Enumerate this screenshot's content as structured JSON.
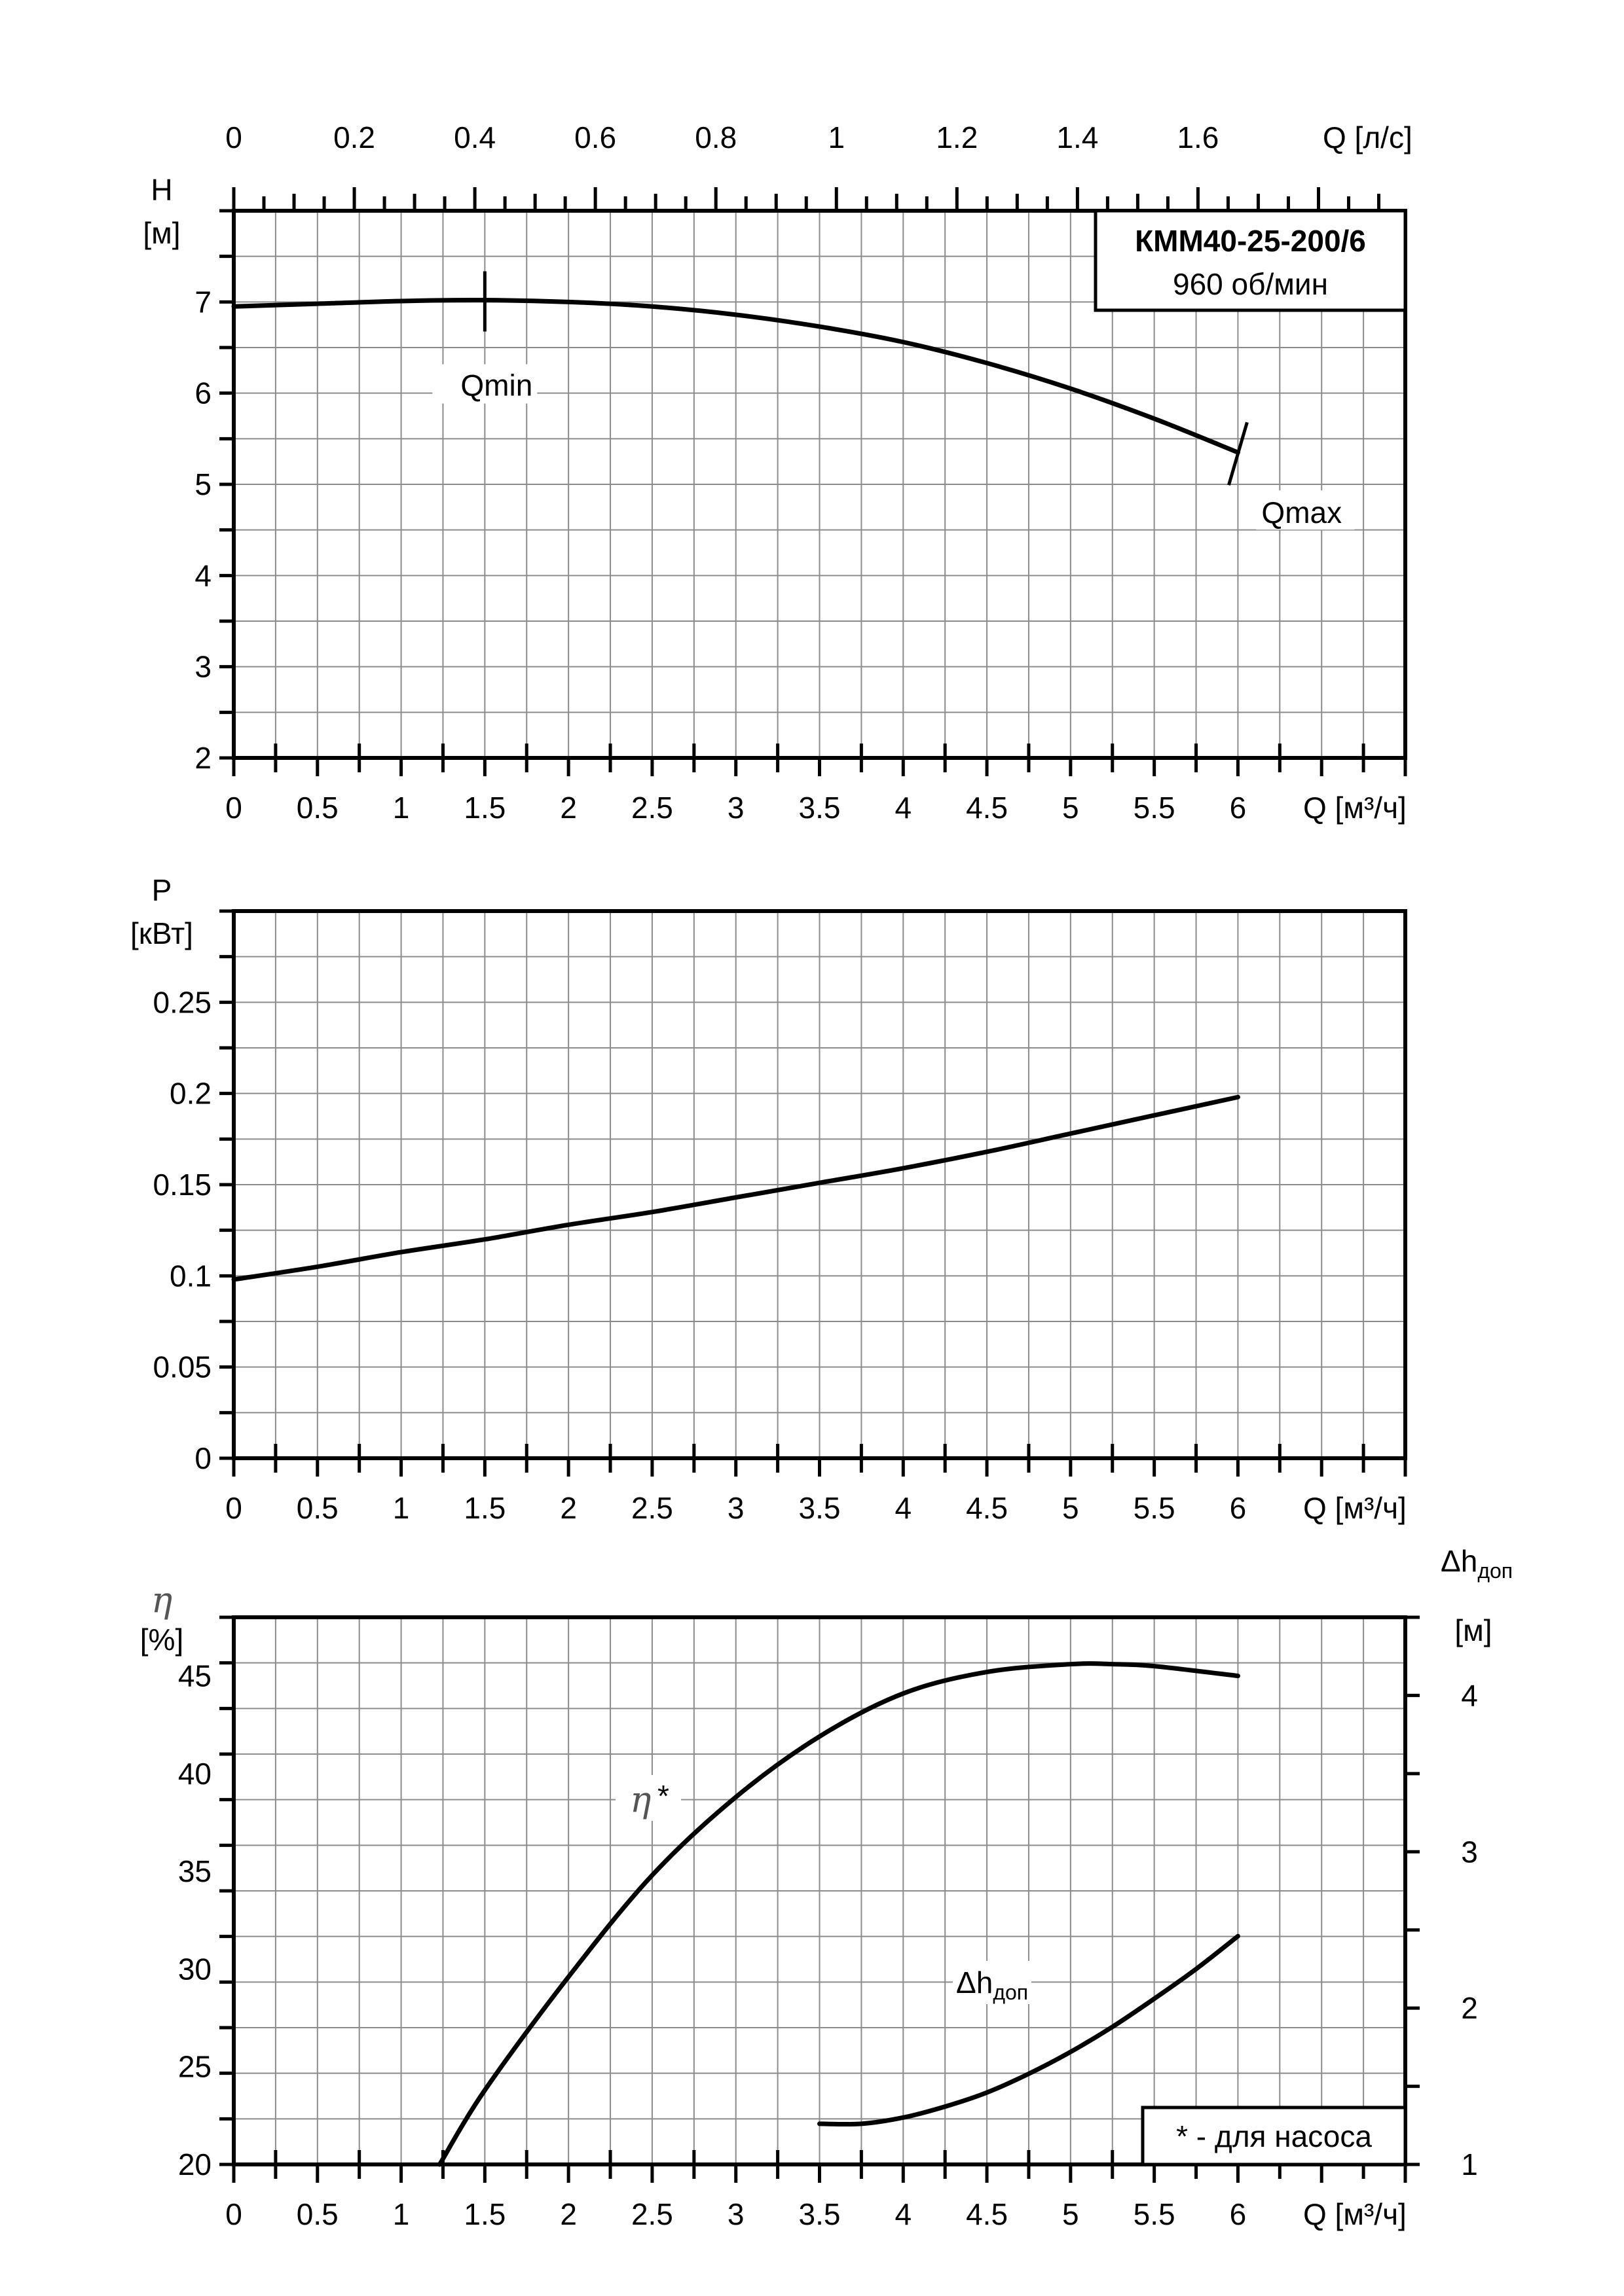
{
  "chart_data": [
    {
      "type": "line",
      "ylabel": "H",
      "yunit": "[м]",
      "ylim": [
        2,
        8
      ],
      "yticks": [
        2,
        3,
        4,
        5,
        6,
        7
      ],
      "xlim": [
        0,
        7
      ],
      "xticks": [
        0,
        0.5,
        1,
        1.5,
        2,
        2.5,
        3,
        3.5,
        4,
        4.5,
        5,
        5.5,
        6
      ],
      "xticklabels": [
        "0",
        "0.5",
        "1",
        "1.5",
        "2",
        "2.5",
        "3",
        "3.5",
        "4",
        "4.5",
        "5",
        "5.5",
        "6"
      ],
      "xlabel": "Q [м³/ч]",
      "x2lim": [
        0,
        1.944
      ],
      "x2ticks": [
        0,
        0.2,
        0.4,
        0.6,
        0.8,
        1,
        1.2,
        1.4,
        1.6
      ],
      "x2ticklabels": [
        "0",
        "0.2",
        "0.4",
        "0.6",
        "0.8",
        "1",
        "1.2",
        "1.4",
        "1.6"
      ],
      "x2label": "Q [л/с]",
      "grid": true,
      "title_box": {
        "model": "КММ40-25-200/6",
        "speed": "960 об/мин"
      },
      "series": [
        {
          "x": [
            0,
            0.5,
            1,
            1.5,
            2,
            2.5,
            3,
            3.5,
            4,
            4.5,
            5,
            5.5,
            6
          ],
          "y": [
            6.95,
            6.98,
            7.01,
            7.02,
            7.0,
            6.95,
            6.86,
            6.73,
            6.56,
            6.33,
            6.05,
            5.72,
            5.35
          ]
        }
      ],
      "annotations": [
        {
          "label": "Qmin",
          "x": 1.5,
          "y": 7.02
        },
        {
          "label": "Qmax",
          "x": 6.0,
          "y": 5.35
        }
      ]
    },
    {
      "type": "line",
      "ylabel": "P",
      "yunit": "[кВт]",
      "ylim": [
        0,
        0.3
      ],
      "yticks": [
        0,
        0.05,
        0.1,
        0.15,
        0.2,
        0.25
      ],
      "yticklabels": [
        "0",
        "0.05",
        "0.1",
        "0.15",
        "0.2",
        "0.25"
      ],
      "xlim": [
        0,
        7
      ],
      "xticks": [
        0,
        0.5,
        1,
        1.5,
        2,
        2.5,
        3,
        3.5,
        4,
        4.5,
        5,
        5.5,
        6
      ],
      "xticklabels": [
        "0",
        "0.5",
        "1",
        "1.5",
        "2",
        "2.5",
        "3",
        "3.5",
        "4",
        "4.5",
        "5",
        "5.5",
        "6"
      ],
      "xlabel": "Q [м³/ч]",
      "grid": true,
      "series": [
        {
          "x": [
            0,
            0.5,
            1,
            1.5,
            2,
            2.5,
            3,
            3.5,
            4,
            4.5,
            5,
            5.5,
            6
          ],
          "y": [
            0.098,
            0.105,
            0.113,
            0.12,
            0.128,
            0.135,
            0.143,
            0.151,
            0.159,
            0.168,
            0.178,
            0.188,
            0.198
          ]
        }
      ]
    },
    {
      "type": "line",
      "ylabel": "η",
      "yunit": "[%]",
      "ylim": [
        20,
        48
      ],
      "yticks": [
        20,
        25,
        30,
        35,
        40,
        45
      ],
      "xlim": [
        0,
        7
      ],
      "xticks": [
        0,
        0.5,
        1,
        1.5,
        2,
        2.5,
        3,
        3.5,
        4,
        4.5,
        5,
        5.5,
        6
      ],
      "xticklabels": [
        "0",
        "0.5",
        "1",
        "1.5",
        "2",
        "2.5",
        "3",
        "3.5",
        "4",
        "4.5",
        "5",
        "5.5",
        "6"
      ],
      "xlabel": "Q [м³/ч]",
      "y2label": "Δhдоп",
      "y2unit": "[м]",
      "y2lim": [
        1,
        4.5
      ],
      "y2ticks": [
        1,
        2,
        3,
        4
      ],
      "grid": true,
      "note": "* - для насоса",
      "series": [
        {
          "label": "η*",
          "axis": "left",
          "x": [
            1.23,
            1.5,
            2,
            2.5,
            3,
            3.5,
            4,
            4.5,
            5,
            5.25,
            5.5,
            6
          ],
          "y": [
            20,
            23.8,
            29.6,
            34.8,
            38.8,
            41.9,
            44.1,
            45.2,
            45.6,
            45.6,
            45.5,
            45.0
          ]
        },
        {
          "label": "Δhдоп",
          "axis": "right",
          "x": [
            3.5,
            3.75,
            4,
            4.25,
            4.5,
            4.75,
            5,
            5.25,
            5.5,
            5.75,
            6
          ],
          "y": [
            1.26,
            1.26,
            1.3,
            1.37,
            1.46,
            1.58,
            1.72,
            1.88,
            2.06,
            2.25,
            2.46
          ]
        }
      ]
    }
  ]
}
